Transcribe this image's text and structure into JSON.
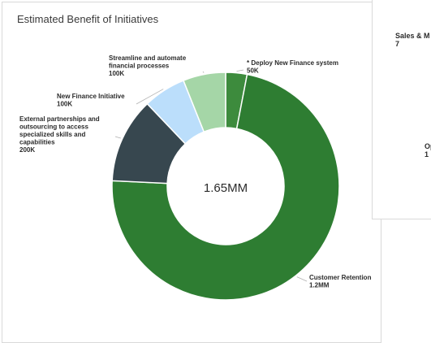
{
  "card": {
    "title": "Estimated Benefit of Initiatives"
  },
  "side_card": {
    "label1": "Sales & M",
    "value1": "7",
    "label2": "Op",
    "value2": "1"
  },
  "chart_data": {
    "type": "donut",
    "center_label": "1.65MM",
    "slices": [
      {
        "name": "* Deploy New Finance system",
        "value": 50000,
        "value_label": "50K",
        "color": "#3d8b3d"
      },
      {
        "name": "Customer Retention",
        "value": 1200000,
        "value_label": "1.2MM",
        "color": "#2e7d32"
      },
      {
        "name": "External partnerships and outsourcing to access specialized skills and capabilities",
        "value": 200000,
        "value_label": "200K",
        "color": "#37474f"
      },
      {
        "name": "New Finance Initiative",
        "value": 100000,
        "value_label": "100K",
        "color": "#bbdefb"
      },
      {
        "name": "Streamline and automate financial processes",
        "value": 100000,
        "value_label": "100K",
        "color": "#a5d6a7"
      }
    ]
  }
}
